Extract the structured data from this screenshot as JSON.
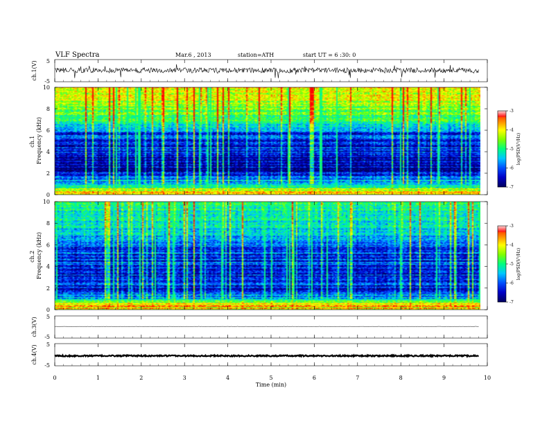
{
  "header": {
    "title": "VLF  Spectra",
    "date": "Mar.6  , 2013",
    "station": "station=ATH",
    "start": "start  UT  =   6  :30: 0"
  },
  "colors": {
    "colormap": [
      "#000060",
      "#0000c8",
      "#0050ff",
      "#00c8ff",
      "#00ff80",
      "#80ff00",
      "#ffff00",
      "#ff8000",
      "#ff0000",
      "#ffffff"
    ]
  },
  "chart_data": [
    {
      "type": "line",
      "panel": "ch1-waveform",
      "ylabel": "ch.1(V)",
      "yticks": [
        "5",
        "-5"
      ],
      "ylim": [
        -5,
        5
      ],
      "xlim": [
        0,
        10
      ],
      "data_end_min": 9.8,
      "baseline_v": 0.2,
      "noise_band_v": [
        -1.0,
        1.3
      ],
      "spike_range_v": [
        -3.5,
        3.0
      ]
    },
    {
      "type": "heatmap",
      "panel": "ch1-spectrogram",
      "ylabel": "ch.1\nFrequency  (kHz)",
      "yticks": [
        "0",
        "2",
        "4",
        "6",
        "8",
        "10"
      ],
      "ylim": [
        0,
        10
      ],
      "xlim": [
        0,
        10
      ],
      "data_end_min": 9.8,
      "colorbar": {
        "label": "log(PSD(V²/Hz)",
        "ticks": [
          "-3",
          "-4",
          "-5",
          "-6",
          "-7"
        ],
        "range": [
          -7,
          -3
        ]
      },
      "profile_logpsd": [
        {
          "f_khz": 0.2,
          "v": -3.6
        },
        {
          "f_khz": 0.6,
          "v": -4.8
        },
        {
          "f_khz": 1.0,
          "v": -5.6
        },
        {
          "f_khz": 1.6,
          "v": -6.0
        },
        {
          "f_khz": 2.0,
          "v": -6.5
        },
        {
          "f_khz": 2.6,
          "v": -6.9
        },
        {
          "f_khz": 3.5,
          "v": -6.4
        },
        {
          "f_khz": 4.5,
          "v": -6.2
        },
        {
          "f_khz": 5.6,
          "v": -6.1
        },
        {
          "f_khz": 6.2,
          "v": -5.4
        },
        {
          "f_khz": 7.0,
          "v": -4.9
        },
        {
          "f_khz": 8.0,
          "v": -4.6
        },
        {
          "f_khz": 9.0,
          "v": -4.2
        },
        {
          "f_khz": 10.0,
          "v": -4.0
        }
      ]
    },
    {
      "type": "heatmap",
      "panel": "ch2-spectrogram",
      "ylabel": "ch.2\nFrequency  (kHz)",
      "yticks": [
        "0",
        "2",
        "4",
        "6",
        "8",
        "10"
      ],
      "ylim": [
        0,
        10
      ],
      "xlim": [
        0,
        10
      ],
      "data_end_min": 9.8,
      "colorbar": {
        "label": "log(PSD(V²/Hz)",
        "ticks": [
          "-3",
          "-4",
          "-5",
          "-6",
          "-7"
        ],
        "range": [
          -7,
          -3
        ]
      },
      "profile_logpsd": [
        {
          "f_khz": 0.2,
          "v": -3.8
        },
        {
          "f_khz": 0.6,
          "v": -4.6
        },
        {
          "f_khz": 1.0,
          "v": -5.5
        },
        {
          "f_khz": 1.6,
          "v": -5.8
        },
        {
          "f_khz": 2.0,
          "v": -6.3
        },
        {
          "f_khz": 2.6,
          "v": -6.5
        },
        {
          "f_khz": 3.5,
          "v": -6.3
        },
        {
          "f_khz": 4.5,
          "v": -6.2
        },
        {
          "f_khz": 5.6,
          "v": -6.2
        },
        {
          "f_khz": 6.2,
          "v": -5.8
        },
        {
          "f_khz": 7.0,
          "v": -5.5
        },
        {
          "f_khz": 8.0,
          "v": -5.3
        },
        {
          "f_khz": 9.0,
          "v": -5.1
        },
        {
          "f_khz": 10.0,
          "v": -5.0
        }
      ]
    },
    {
      "type": "line",
      "panel": "ch3-waveform",
      "ylabel": "ch.3(V)",
      "yticks": [
        "5",
        "-5"
      ],
      "ylim": [
        -5,
        5
      ],
      "xlim": [
        0,
        10
      ],
      "data_end_min": 9.8,
      "baseline_v": 0.2,
      "noise_band_v": [
        0.1,
        0.3
      ]
    },
    {
      "type": "line",
      "panel": "ch4-waveform",
      "ylabel": "ch.4(V)",
      "yticks": [
        "5",
        "-5"
      ],
      "ylim": [
        -5,
        5
      ],
      "xlim": [
        0,
        10
      ],
      "data_end_min": 9.8,
      "baseline_v": -0.5,
      "noise_band_v": [
        -0.8,
        -0.2
      ]
    }
  ],
  "xaxis": {
    "xlabel": "Time  (min)",
    "xticks": [
      "0",
      "1",
      "2",
      "3",
      "4",
      "5",
      "6",
      "7",
      "8",
      "9",
      "10"
    ],
    "xlim": [
      0,
      10
    ]
  }
}
